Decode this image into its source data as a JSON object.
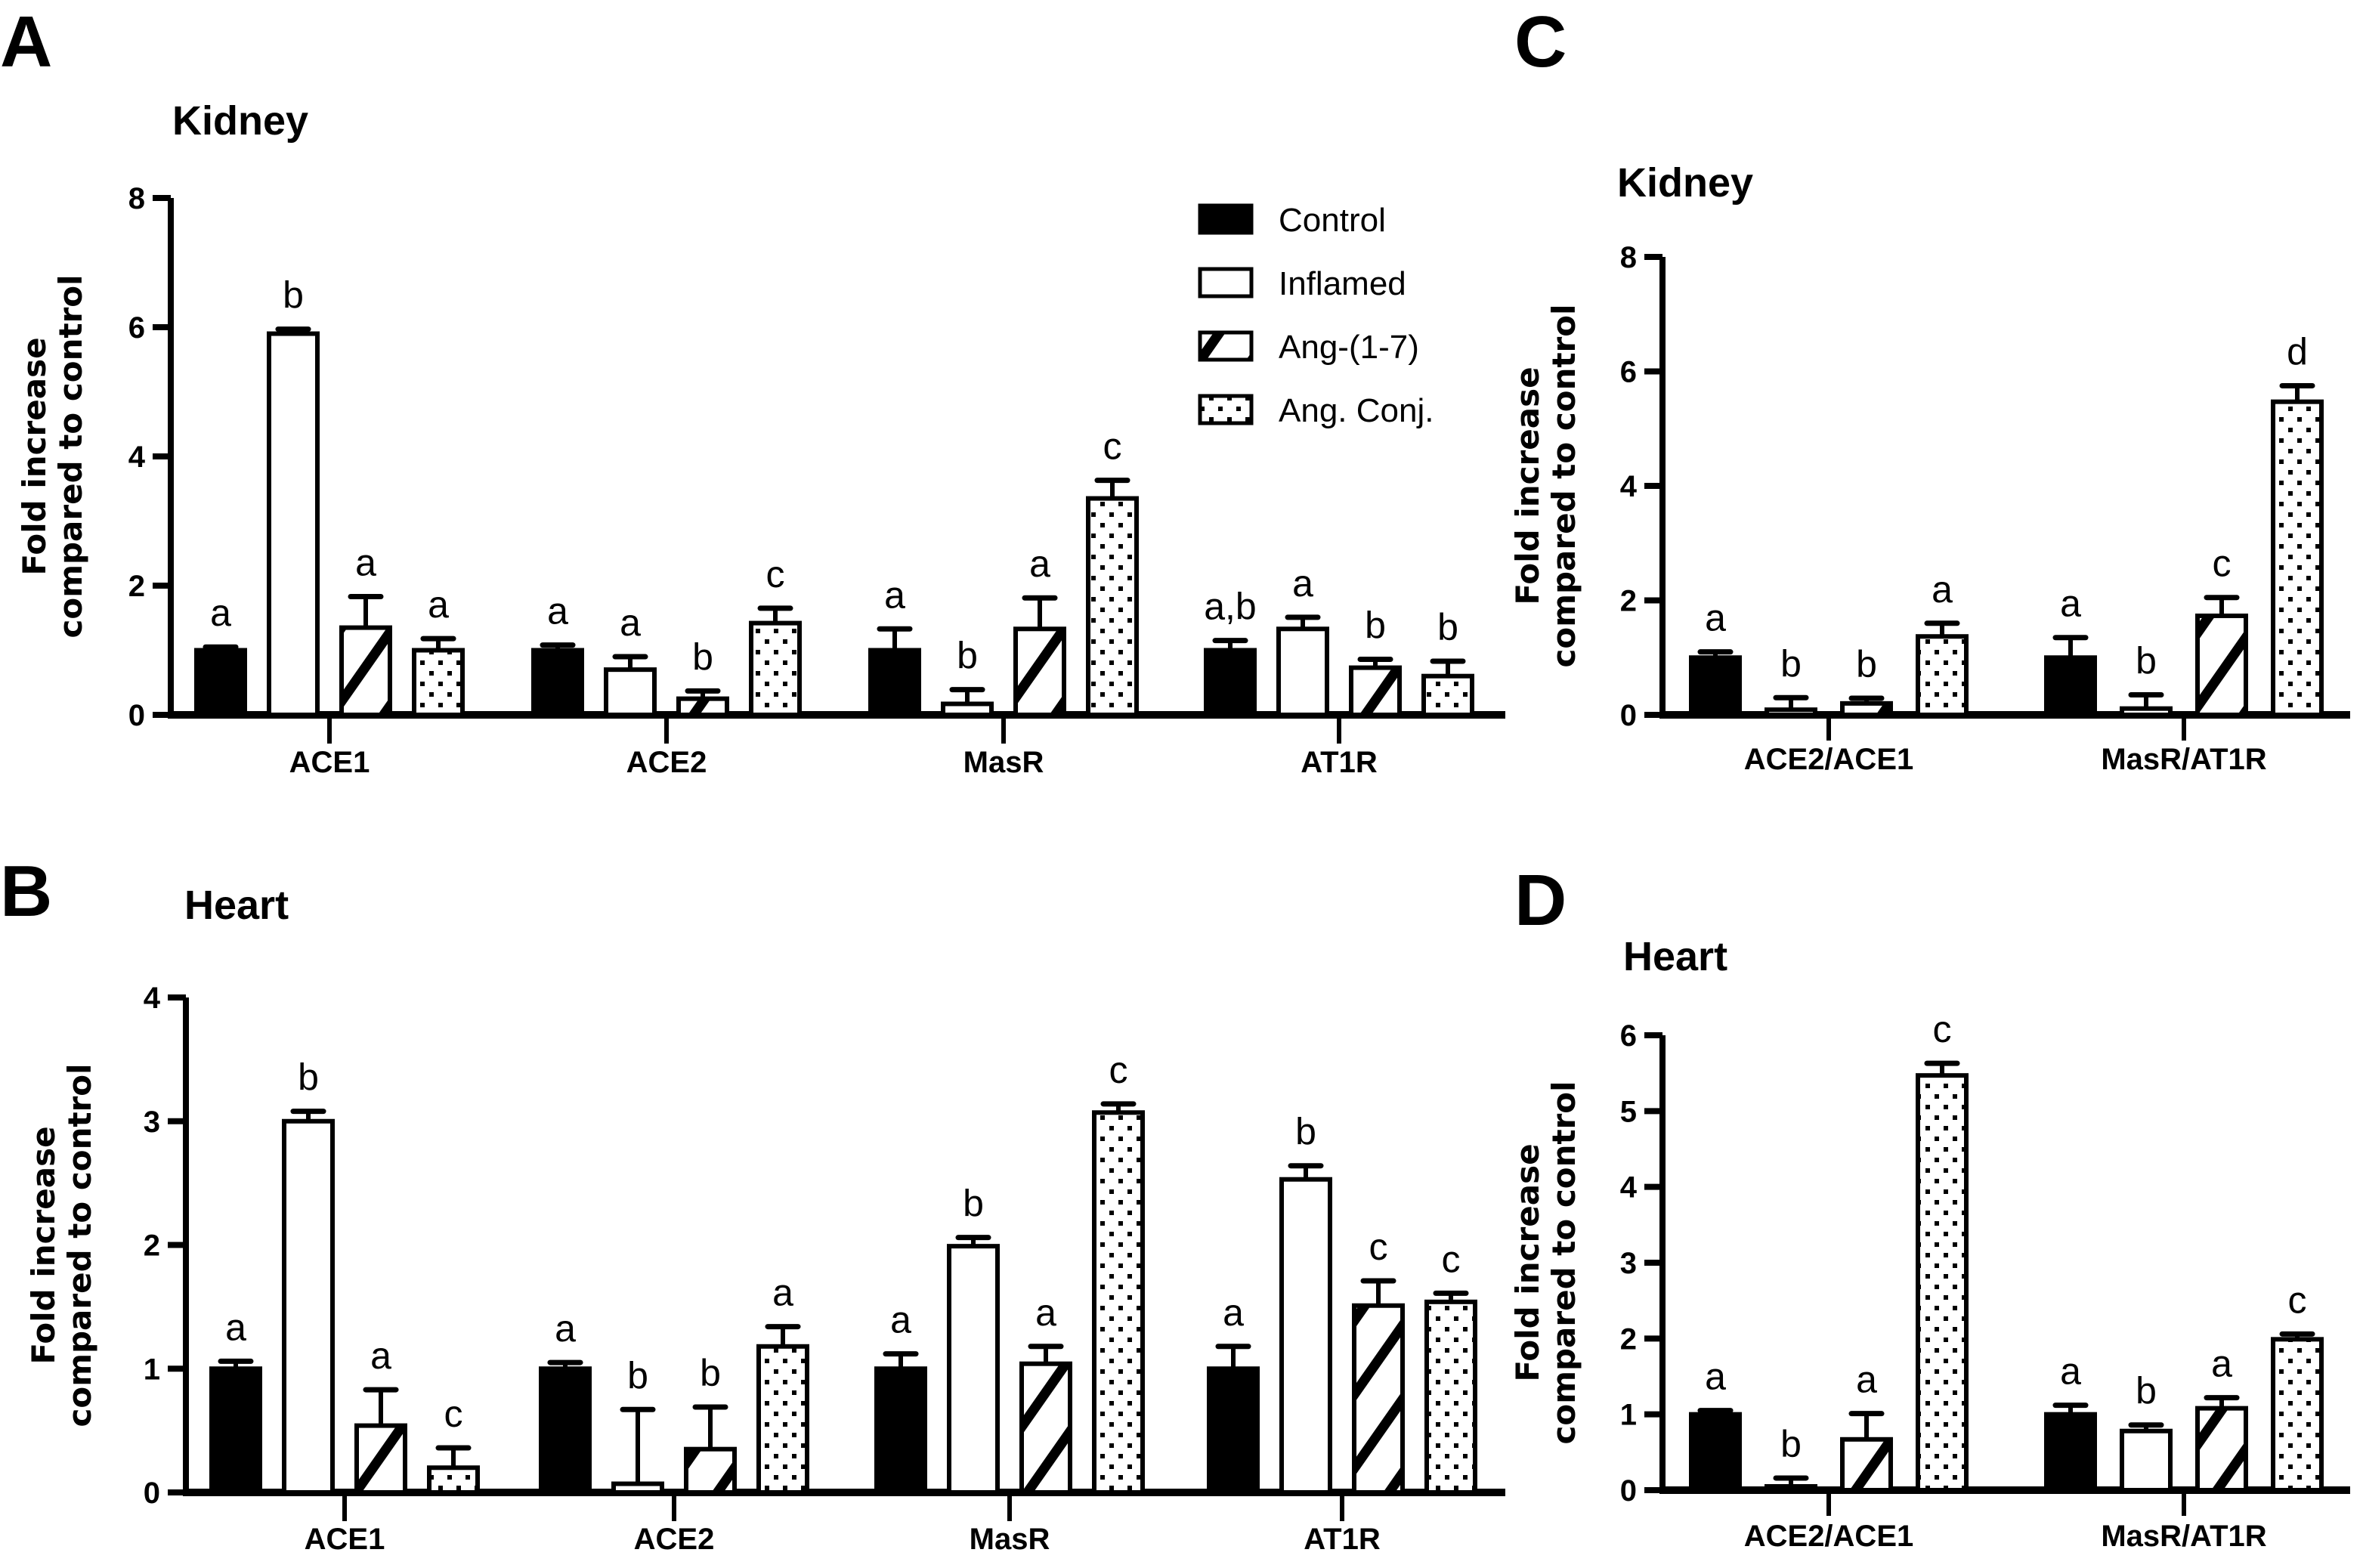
{
  "figure": {
    "legend": {
      "position": "top-right of panel A",
      "entries": [
        {
          "name": "Control",
          "pattern": "solid-black"
        },
        {
          "name": "Inflamed",
          "pattern": "white"
        },
        {
          "name": "Ang-(1-7)",
          "pattern": "diagonal-stripes"
        },
        {
          "name": "Ang. Conj.",
          "pattern": "dots"
        }
      ]
    },
    "colors": {
      "ink": "#000000",
      "background": "#ffffff"
    }
  },
  "chart_data": [
    {
      "panel": "A",
      "type": "bar",
      "title": "Kidney",
      "xlabel": "",
      "ylabel": "Fold increase compared to control",
      "ylabel_lines": [
        "Fold increase",
        "compared to control"
      ],
      "ylim": [
        0,
        8
      ],
      "yticks": [
        0,
        2,
        4,
        6,
        8
      ],
      "grid": false,
      "categories": [
        "ACE1",
        "ACE2",
        "MasR",
        "AT1R"
      ],
      "series": [
        {
          "name": "Control",
          "values": [
            1.0,
            1.0,
            1.0,
            1.0
          ],
          "errors": [
            0.05,
            0.08,
            0.33,
            0.15
          ],
          "sig": [
            "a",
            "a",
            "a",
            "a,b"
          ]
        },
        {
          "name": "Inflamed",
          "values": [
            5.9,
            0.7,
            0.17,
            1.33
          ],
          "errors": [
            0.07,
            0.2,
            0.22,
            0.18
          ],
          "sig": [
            "b",
            "a",
            "b",
            "a"
          ]
        },
        {
          "name": "Ang-(1-7)",
          "values": [
            1.35,
            0.25,
            1.33,
            0.73
          ],
          "errors": [
            0.48,
            0.12,
            0.48,
            0.13
          ],
          "sig": [
            "a",
            "b",
            "a",
            "b"
          ]
        },
        {
          "name": "Ang. Conj.",
          "values": [
            1.0,
            1.42,
            3.35,
            0.6
          ],
          "errors": [
            0.18,
            0.23,
            0.28,
            0.23
          ],
          "sig": [
            "a",
            "c",
            "c",
            "b"
          ]
        }
      ]
    },
    {
      "panel": "B",
      "type": "bar",
      "title": "Heart",
      "xlabel": "",
      "ylabel": "Fold increase compared to control",
      "ylabel_lines": [
        "Fold increase",
        "compared to control"
      ],
      "ylim": [
        0,
        4
      ],
      "yticks": [
        0,
        1,
        2,
        3,
        4
      ],
      "grid": false,
      "categories": [
        "ACE1",
        "ACE2",
        "MasR",
        "AT1R"
      ],
      "series": [
        {
          "name": "Control",
          "values": [
            1.0,
            1.0,
            1.0,
            1.0
          ],
          "errors": [
            0.06,
            0.05,
            0.12,
            0.18
          ],
          "sig": [
            "a",
            "a",
            "a",
            "a"
          ]
        },
        {
          "name": "Inflamed",
          "values": [
            3.0,
            0.07,
            1.99,
            2.53
          ],
          "errors": [
            0.08,
            0.6,
            0.07,
            0.11
          ],
          "sig": [
            "b",
            "b",
            "b",
            "b"
          ]
        },
        {
          "name": "Ang-(1-7)",
          "values": [
            0.54,
            0.35,
            1.04,
            1.51
          ],
          "errors": [
            0.29,
            0.34,
            0.14,
            0.2
          ],
          "sig": [
            "a",
            "b",
            "a",
            "c"
          ]
        },
        {
          "name": "Ang. Conj.",
          "values": [
            0.2,
            1.18,
            3.07,
            1.54
          ],
          "errors": [
            0.16,
            0.16,
            0.07,
            0.07
          ],
          "sig": [
            "c",
            "a",
            "c",
            "c"
          ]
        }
      ]
    },
    {
      "panel": "C",
      "type": "bar",
      "title": "Kidney",
      "xlabel": "",
      "ylabel": "Fold increase compared to control",
      "ylabel_lines": [
        "Fold increase",
        "compared to control"
      ],
      "ylim": [
        0,
        8
      ],
      "yticks": [
        0,
        2,
        4,
        6,
        8
      ],
      "grid": false,
      "categories": [
        "ACE2/ACE1",
        "MasR/AT1R"
      ],
      "series": [
        {
          "name": "Control",
          "values": [
            1.0,
            1.0
          ],
          "errors": [
            0.1,
            0.35
          ],
          "sig": [
            "a",
            "a"
          ]
        },
        {
          "name": "Inflamed",
          "values": [
            0.09,
            0.11
          ],
          "errors": [
            0.21,
            0.24
          ],
          "sig": [
            "b",
            "b"
          ]
        },
        {
          "name": "Ang-(1-7)",
          "values": [
            0.2,
            1.73
          ],
          "errors": [
            0.09,
            0.32
          ],
          "sig": [
            "b",
            "c"
          ]
        },
        {
          "name": "Ang. Conj.",
          "values": [
            1.37,
            5.47
          ],
          "errors": [
            0.23,
            0.28
          ],
          "sig": [
            "a",
            "d"
          ]
        }
      ]
    },
    {
      "panel": "D",
      "type": "bar",
      "title": "Heart",
      "xlabel": "",
      "ylabel": "Fold increase compared to control",
      "ylabel_lines": [
        "Fold increase",
        "compared to control"
      ],
      "ylim": [
        0,
        6
      ],
      "yticks": [
        0,
        1,
        2,
        3,
        4,
        5,
        6
      ],
      "grid": false,
      "categories": [
        "ACE2/ACE1",
        "MasR/AT1R"
      ],
      "series": [
        {
          "name": "Control",
          "values": [
            1.0,
            1.0
          ],
          "errors": [
            0.05,
            0.12
          ],
          "sig": [
            "a",
            "a"
          ]
        },
        {
          "name": "Inflamed",
          "values": [
            0.05,
            0.78
          ],
          "errors": [
            0.11,
            0.08
          ],
          "sig": [
            "b",
            "b"
          ]
        },
        {
          "name": "Ang-(1-7)",
          "values": [
            0.67,
            1.08
          ],
          "errors": [
            0.34,
            0.14
          ],
          "sig": [
            "a",
            "a"
          ]
        },
        {
          "name": "Ang. Conj.",
          "values": [
            5.47,
            1.99
          ],
          "errors": [
            0.16,
            0.07
          ],
          "sig": [
            "c",
            "c"
          ]
        }
      ]
    }
  ]
}
